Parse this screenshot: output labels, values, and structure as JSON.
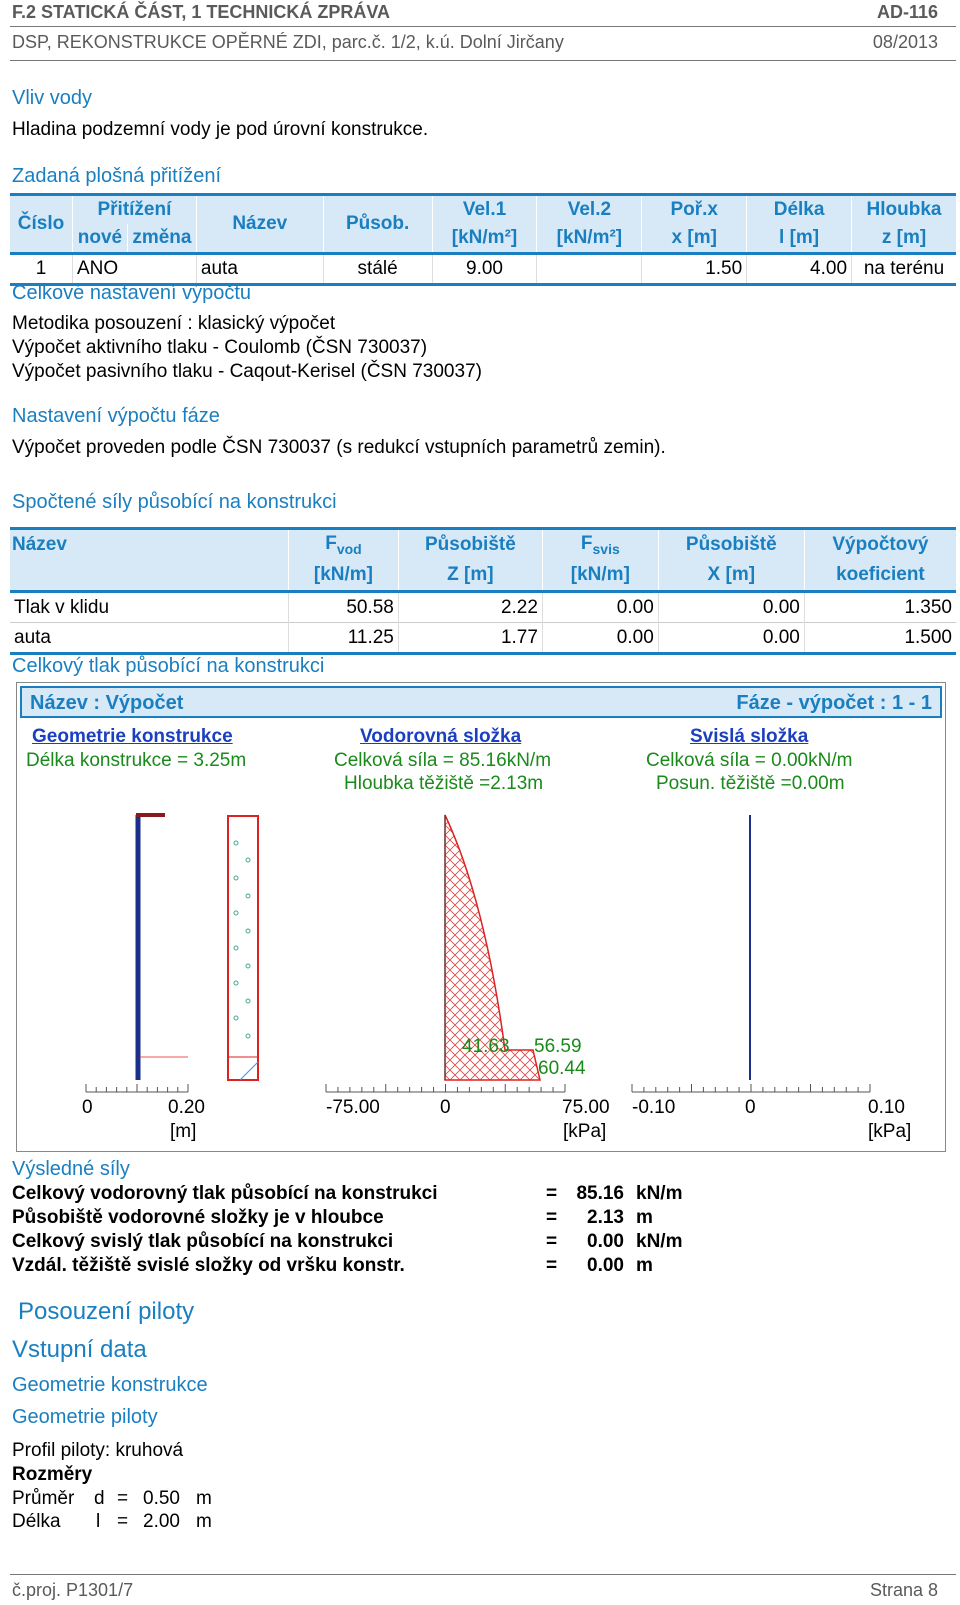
{
  "header": {
    "title": "F.2 STATICKÁ ČÁST, 1 TECHNICKÁ ZPRÁVA",
    "code": "AD-116",
    "subtitle": "DSP, REKONSTRUKCE OPĚRNÉ ZDI, parc.č. 1/2, k.ú. Dolní Jirčany",
    "date": "08/2013"
  },
  "water": {
    "heading": "Vliv vody",
    "text": "Hladina podzemní vody je pod úrovní konstrukce."
  },
  "surcharge": {
    "heading": "Zadaná plošná přitížení",
    "headers": {
      "cislo": "Číslo",
      "pritizeni": "Přitížení",
      "nove": "nové",
      "zmena": "změna",
      "nazev": "Název",
      "pusob": "Působ.",
      "vel1": "Vel.1",
      "vel1u": "[kN/m²]",
      "vel2": "Vel.2",
      "vel2u": "[kN/m²]",
      "porx": "Poř.x",
      "porxu": "x [m]",
      "delka": "Délka",
      "delkau": "l [m]",
      "hloubka": "Hloubka",
      "hloubkau": "z [m]"
    },
    "row": {
      "cislo": "1",
      "nove": "ANO",
      "nazev": "auta",
      "pusob": "stálé",
      "vel1": "9.00",
      "vel2": "",
      "porx": "1.50",
      "delka": "4.00",
      "hloubka": "na terénu"
    }
  },
  "calc": {
    "heading": "Celkové nastavení výpočtu",
    "lines": [
      "Metodika posouzení : klasický výpočet",
      "Výpočet aktivního tlaku - Coulomb (ČSN 730037)",
      "Výpočet pasivního tlaku - Caqout-Kerisel (ČSN 730037)"
    ]
  },
  "phase": {
    "heading": "Nastavení výpočtu fáze",
    "text": "Výpočet proveden podle ČSN 730037 (s redukcí vstupních parametrů zemin)."
  },
  "forces": {
    "heading": "Spočtené síly působící na konstrukci",
    "headers": {
      "nazev": "Název",
      "fvod": "F",
      "fvod_sub": "vod",
      "fvod_u": "[kN/m]",
      "pz": "Působiště",
      "pz_u": "Z [m]",
      "fsvis": "F",
      "fsvis_sub": "svis",
      "fsvis_u": "[kN/m]",
      "px": "Působiště",
      "px_u": "X [m]",
      "koef": "Výpočtový",
      "koef_u": "koeficient"
    },
    "rows": [
      {
        "nazev": "Tlak v klidu",
        "fvod": "50.58",
        "pz": "2.22",
        "fsvis": "0.00",
        "px": "0.00",
        "koef": "1.350"
      },
      {
        "nazev": "auta",
        "fvod": "11.25",
        "pz": "1.77",
        "fsvis": "0.00",
        "px": "0.00",
        "koef": "1.500"
      }
    ]
  },
  "graphic": {
    "heading": "Celkový tlak působící na konstrukci",
    "title_left": "Název : Výpočet",
    "title_right": "Fáze - výpočet : 1 - 1",
    "geom": {
      "link": "Geometrie konstrukce",
      "line1": "Délka konstrukce = 3.25m"
    },
    "horiz": {
      "link": "Vodorovná složka",
      "line1": "Celková síla = 85.16kN/m",
      "line2": "Hloubka těžiště =2.13m"
    },
    "vert": {
      "link": "Svislá složka",
      "line1": "Celková síla = 0.00kN/m",
      "line2": "Posun. těžiště =0.00m"
    },
    "labels": {
      "v1": "41.63",
      "v2": "56.59",
      "v3": "60.44"
    },
    "axis1": {
      "a": "0",
      "b": "0.20",
      "unit": "[m]"
    },
    "axis2": {
      "a": "-75.00",
      "b": "0",
      "c": "75.00",
      "unit": "[kPa]"
    },
    "axis3": {
      "a": "-0.10",
      "b": "0",
      "c": "0.10",
      "unit": "[kPa]"
    }
  },
  "results": {
    "heading": "Výsledné síly",
    "rows": [
      {
        "label": "Celkový vodorovný tlak působící na konstrukci",
        "eq": "=",
        "val": "85.16",
        "unit": "kN/m"
      },
      {
        "label": "Působiště vodorovné složky je v hloubce",
        "eq": "=",
        "val": "2.13",
        "unit": "m"
      },
      {
        "label": "Celkový svislý tlak působící na konstrukci",
        "eq": "=",
        "val": "0.00",
        "unit": "kN/m"
      },
      {
        "label": "Vzdál. těžiště svislé složky od vršku konstr.",
        "eq": "=",
        "val": "0.00",
        "unit": "m"
      }
    ]
  },
  "pile": {
    "h1": "Posouzení piloty",
    "h2": "Vstupní data",
    "h3": "Geometrie konstrukce",
    "h4": "Geometrie piloty",
    "profile": "Profil piloty: kruhová",
    "dims": "Rozměry",
    "d_label": "Průměr",
    "d_sym": "d",
    "d_eq": "=",
    "d_val": "0.50",
    "d_unit": "m",
    "l_label": "Délka",
    "l_sym": "l",
    "l_eq": "=",
    "l_val": "2.00",
    "l_unit": "m"
  },
  "footer": {
    "left": "č.proj. P1301/7",
    "right": "Strana 8"
  }
}
